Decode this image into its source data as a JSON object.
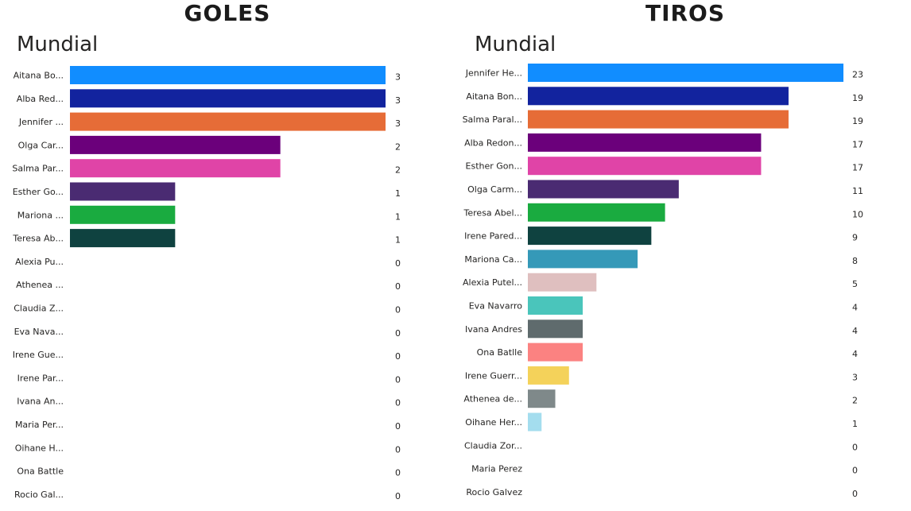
{
  "chart_data": [
    {
      "type": "bar",
      "orientation": "horizontal",
      "title": "GOLES",
      "subtitle": "Mundial",
      "categories": [
        "Aitana Bo...",
        "Alba Red...",
        "Jennifer ...",
        "Olga Car...",
        "Salma Par...",
        "Esther Go...",
        "Mariona ...",
        "Teresa Ab...",
        "Alexia Pu...",
        "Athenea ...",
        "Claudia Z...",
        "Eva Nava...",
        "Irene Gue...",
        "Irene Par...",
        "Ivana An...",
        "Maria Per...",
        "Oihane H...",
        "Ona Battle",
        "Rocio Gal..."
      ],
      "values": [
        3,
        3,
        3,
        2,
        2,
        1,
        1,
        1,
        0,
        0,
        0,
        0,
        0,
        0,
        0,
        0,
        0,
        0,
        0
      ],
      "colors": [
        "#118DFF",
        "#12239E",
        "#E66C37",
        "#6B007B",
        "#E044A7",
        "#4A2B72",
        "#1AAB40",
        "#0F4240",
        "#3599B8",
        "#DFBFBF",
        "#4AC5BB",
        "#5F6B6D",
        "#FB8281",
        "#F4D25A",
        "#7F898A",
        "#A4DDEE",
        "#118DFF",
        "#12239E",
        "#E66C37"
      ],
      "xlim": [
        0,
        3
      ],
      "grid": false,
      "data_labels": true
    },
    {
      "type": "bar",
      "orientation": "horizontal",
      "title": "TIROS",
      "subtitle": "Mundial",
      "categories": [
        "Jennifer He...",
        "Aitana Bon...",
        "Salma Paral...",
        "Alba Redon...",
        "Esther Gon...",
        "Olga Carm...",
        "Teresa Abel...",
        "Irene Pared...",
        "Mariona Ca...",
        "Alexia Putel...",
        "Eva Navarro",
        "Ivana Andres",
        "Ona Batlle",
        "Irene Guerr...",
        "Athenea de...",
        "Oihane Her...",
        "Claudia Zor...",
        "Maria Perez",
        "Rocio Galvez"
      ],
      "values": [
        23,
        19,
        19,
        17,
        17,
        11,
        10,
        9,
        8,
        5,
        4,
        4,
        4,
        3,
        2,
        1,
        0,
        0,
        0
      ],
      "colors": [
        "#118DFF",
        "#12239E",
        "#E66C37",
        "#6B007B",
        "#E044A7",
        "#4A2B72",
        "#1AAB40",
        "#0F4240",
        "#3599B8",
        "#DFBFBF",
        "#4AC5BB",
        "#5F6B6D",
        "#FB8281",
        "#F4D25A",
        "#7F898A",
        "#A4DDEE",
        "#118DFF",
        "#12239E",
        "#E66C37"
      ],
      "xlim": [
        0,
        23
      ],
      "grid": false,
      "data_labels": true
    }
  ]
}
